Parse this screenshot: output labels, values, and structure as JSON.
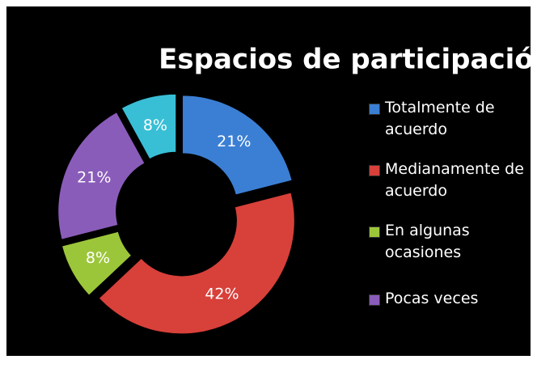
{
  "chart_data": {
    "type": "donut",
    "title": "Espacios de participación",
    "categories": [
      "Totalmente de acuerdo",
      "Medianamente de acuerdo",
      "En algunas ocasiones",
      "Pocas veces",
      null
    ],
    "values": [
      21,
      42,
      8,
      21,
      8
    ],
    "value_labels": [
      "21%",
      "42%",
      "8%",
      "21%",
      "8%"
    ],
    "colors": [
      "#3b7fd4",
      "#d8403a",
      "#9cc63a",
      "#8a5cba",
      "#38bfd6"
    ],
    "legend": "right"
  }
}
